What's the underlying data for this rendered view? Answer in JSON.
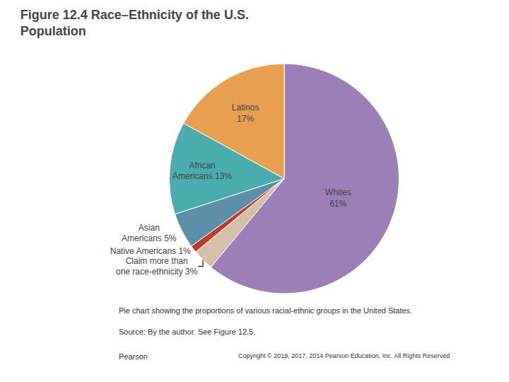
{
  "chart_data": {
    "type": "pie",
    "title": "Figure 12.4 Race–Ethnicity of the U.S.\nPopulation",
    "values": [
      61,
      3,
      1,
      5,
      13,
      17
    ],
    "value_labels": [
      "Whites\n61%",
      "Claim more than\none race-ethnicity 3%",
      "Native Americans 1%",
      "Asian\nAmericans 5%",
      "African\nAmericans 13%",
      "Latinos\n17%"
    ],
    "colors": [
      "#9b7fb6",
      "#d4bfa8",
      "#c0392b",
      "#5b8fa8",
      "#4aadad",
      "#e8a050"
    ],
    "data_labels": true,
    "annotations": [
      "Pie chart showing the proportions of various racial-ethnic groups in the United States.",
      "Source: By the author. See Figure 12.5.",
      "Pearson",
      "Copyright © 2019, 2017, 2014 Pearson Education, Inc. All Rights Reserved"
    ]
  }
}
